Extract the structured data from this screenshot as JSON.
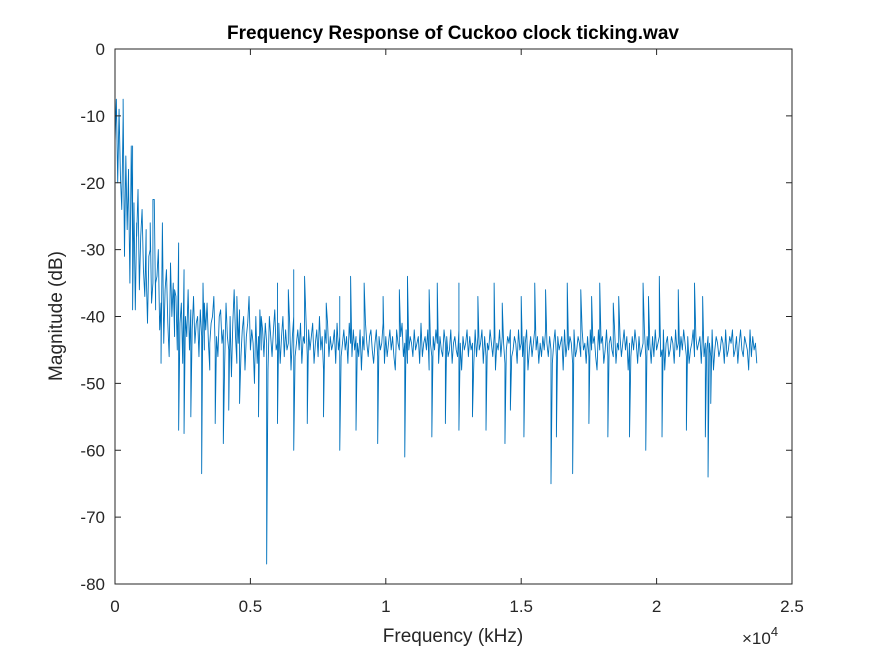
{
  "chart_data": {
    "type": "line",
    "title": "Frequency Response of Cuckoo clock ticking.wav",
    "xlabel": "Frequency (kHz)",
    "ylabel": "Magnitude (dB)",
    "x_exponent_label": "×10",
    "x_exponent_power": "4",
    "xlim": [
      0,
      25000
    ],
    "ylim": [
      -80,
      0
    ],
    "xticks": [
      0,
      5000,
      10000,
      15000,
      20000,
      25000
    ],
    "xtick_labels": [
      "0",
      "0.5",
      "1",
      "1.5",
      "2",
      "2.5"
    ],
    "yticks": [
      0,
      -10,
      -20,
      -30,
      -40,
      -50,
      -60,
      -70,
      -80
    ],
    "ytick_labels": [
      "0",
      "-10",
      "-20",
      "-30",
      "-40",
      "-50",
      "-60",
      "-70",
      "-80"
    ],
    "grid": false,
    "line_color": "#0072BD",
    "series": [
      {
        "x_start": 0,
        "x_end": 22050,
        "x_step": 50,
        "values": [
          -14,
          -7.5,
          -20,
          -9,
          -19,
          -24,
          -10,
          -31,
          -16,
          -27,
          -18,
          -35,
          -14.5,
          -29,
          -23,
          -39,
          -26,
          -21,
          -36,
          -28,
          -24,
          -33,
          -37,
          -27,
          -41,
          -31,
          -30,
          -38,
          -35,
          -22.5,
          -39,
          -34,
          -30,
          -42,
          -38,
          -26,
          -44,
          -36,
          -33,
          -41,
          -46,
          -32,
          -40,
          -35,
          -43,
          -37,
          -45,
          -29,
          -41,
          -38,
          -47,
          -33,
          -40,
          -43,
          -36,
          -45,
          -39,
          -42,
          -37,
          -44,
          -41,
          -40,
          -46,
          -39,
          -43,
          -35,
          -45,
          -42,
          -38,
          -44,
          -48,
          -41,
          -40,
          -37,
          -45,
          -43,
          -46,
          -40,
          -39,
          -44,
          -42,
          -47,
          -38,
          -43,
          -45,
          -40,
          -49,
          -41,
          -36,
          -43,
          -47,
          -44,
          -39,
          -46,
          -42,
          -40,
          -48,
          -43,
          -41,
          -37,
          -45,
          -42,
          -44,
          -50,
          -40,
          -47,
          -43,
          -39,
          -45,
          -42,
          -46,
          -41,
          -44,
          -48,
          -40,
          -43,
          -46,
          -42,
          -39,
          -45,
          -44,
          -41,
          -47,
          -43,
          -40,
          -46,
          -42,
          -45,
          -44,
          -41,
          -48,
          -43,
          -40,
          -46,
          -44,
          -42,
          -45,
          -41,
          -47,
          -43,
          -44,
          -40,
          -46,
          -42,
          -45,
          -43,
          -41,
          -47,
          -44,
          -42,
          -46,
          -40,
          -45,
          -43,
          -48,
          -42,
          -44,
          -41,
          -46,
          -43,
          -45,
          -44,
          -42,
          -47,
          -41,
          -45,
          -43,
          -46,
          -44,
          -42,
          -45,
          -43,
          -47,
          -41,
          -44,
          -46,
          -42,
          -45,
          -43,
          -44,
          -46,
          -42,
          -48,
          -43,
          -45,
          -41,
          -44,
          -46,
          -43,
          -42,
          -45,
          -47,
          -44,
          -42,
          -46,
          -43,
          -45,
          -44,
          -41,
          -47,
          -43,
          -46,
          -44,
          -42,
          -45,
          -43,
          -46,
          -48,
          -42,
          -44,
          -45,
          -43,
          -41,
          -46,
          -44,
          -42,
          -47,
          -45,
          -43,
          -44,
          -46,
          -42,
          -45,
          -44,
          -43,
          -47,
          -41,
          -46,
          -44,
          -43,
          -45,
          -42,
          -48,
          -44,
          -46,
          -43,
          -45,
          -42,
          -44,
          -47,
          -43,
          -45,
          -46,
          -42,
          -44,
          -43,
          -46,
          -45,
          -42,
          -47,
          -44,
          -43,
          -45,
          -46,
          -42,
          -44,
          -48,
          -43,
          -45,
          -44,
          -42,
          -46,
          -43,
          -45,
          -44,
          -47,
          -42,
          -46,
          -43,
          -45,
          -44,
          -42,
          -47,
          -43,
          -46,
          -44,
          -45,
          -42,
          -44,
          -46,
          -43,
          -48,
          -44,
          -45,
          -42,
          -46,
          -43,
          -44,
          -47,
          -45,
          -43,
          -44,
          -42,
          -46,
          -45,
          -43,
          -44,
          -47,
          -42,
          -45,
          -44,
          -46,
          -43,
          -44,
          -42,
          -48,
          -45,
          -43,
          -46,
          -44,
          -42,
          -45,
          -43,
          -47,
          -44,
          -46,
          -43,
          -45,
          -42,
          -44,
          -46,
          -43,
          -45,
          -47,
          -44,
          -42,
          -46,
          -43,
          -45,
          -44,
          -43,
          -48,
          -42,
          -46,
          -44,
          -45,
          -43,
          -44,
          -47,
          -42,
          -46,
          -45,
          -43,
          -44,
          -46,
          -42,
          -45,
          -44,
          -47,
          -43,
          -46,
          -42,
          -45,
          -44,
          -43,
          -46,
          -48,
          -42,
          -45,
          -44,
          -43,
          -47,
          -45,
          -42,
          -46,
          -44,
          -43,
          -45,
          -46,
          -42,
          -47,
          -44,
          -45,
          -43,
          -46,
          -44,
          -42,
          -45,
          -43,
          -48,
          -44,
          -46,
          -43,
          -45,
          -42,
          -44,
          -47,
          -43,
          -46,
          -45,
          -44,
          -42,
          -46,
          -43,
          -45,
          -44,
          -47,
          -43,
          -46,
          -42,
          -45,
          -44,
          -43,
          -46,
          -45,
          -42,
          -48,
          -44,
          -43,
          -46,
          -45,
          -43,
          -44,
          -47,
          -42,
          -45,
          -44,
          -46,
          -43,
          -45,
          -42,
          -44,
          -46,
          -43,
          -47,
          -45,
          -44,
          -42,
          -46,
          -43,
          -45,
          -44,
          -43,
          -47,
          -42,
          -46,
          -44,
          -45,
          -43,
          -44,
          -46,
          -42,
          -48,
          -45,
          -43,
          -44,
          -46,
          -45,
          -43,
          -44,
          -47,
          -42,
          -46,
          -45,
          -43,
          -44,
          -42,
          -46,
          -45,
          -43,
          -47,
          -44,
          -42,
          -45,
          -46,
          -43,
          -44,
          -45,
          -48,
          -42,
          -46,
          -43,
          -45,
          -44,
          -47
        ],
        "peaks": [
          [
            300,
            -7.5
          ],
          [
            500,
            -20
          ],
          [
            650,
            -14.5
          ],
          [
            800,
            -28
          ],
          [
            1000,
            -24
          ],
          [
            1150,
            -33
          ],
          [
            1300,
            -26
          ],
          [
            1400,
            -22.5
          ],
          [
            1500,
            -35
          ],
          [
            2200,
            -36
          ],
          [
            2800,
            -43
          ],
          [
            2900,
            -37
          ],
          [
            3300,
            -38
          ],
          [
            3500,
            -44
          ],
          [
            4500,
            -37
          ],
          [
            5400,
            -40
          ],
          [
            6000,
            -35
          ],
          [
            6400,
            -36
          ],
          [
            6600,
            -33
          ],
          [
            7000,
            -34
          ],
          [
            7800,
            -38
          ],
          [
            8300,
            -37
          ],
          [
            8700,
            -34
          ],
          [
            9200,
            -35
          ],
          [
            9900,
            -37
          ],
          [
            10500,
            -36
          ],
          [
            10800,
            -34
          ],
          [
            11600,
            -36
          ],
          [
            11900,
            -35
          ],
          [
            12700,
            -35
          ],
          [
            13400,
            -37
          ],
          [
            14000,
            -35
          ],
          [
            14300,
            -38
          ],
          [
            15000,
            -37
          ],
          [
            15500,
            -35
          ],
          [
            15900,
            -36
          ],
          [
            16700,
            -35
          ],
          [
            17200,
            -36
          ],
          [
            17600,
            -37
          ],
          [
            17900,
            -35
          ],
          [
            18400,
            -38
          ],
          [
            18600,
            -37
          ],
          [
            19500,
            -35
          ],
          [
            19700,
            -37
          ],
          [
            20100,
            -34
          ],
          [
            20800,
            -36
          ],
          [
            21400,
            -35
          ],
          [
            21700,
            -37
          ]
        ],
        "dips": [
          [
            650,
            -39
          ],
          [
            1700,
            -47
          ],
          [
            2350,
            -57
          ],
          [
            2550,
            -57.5
          ],
          [
            2800,
            -55
          ],
          [
            3200,
            -63.5
          ],
          [
            3700,
            -56
          ],
          [
            4000,
            -59
          ],
          [
            4200,
            -54
          ],
          [
            4600,
            -53
          ],
          [
            5300,
            -55
          ],
          [
            5600,
            -77
          ],
          [
            6000,
            -56
          ],
          [
            6600,
            -60
          ],
          [
            7100,
            -56
          ],
          [
            7700,
            -55
          ],
          [
            8300,
            -60
          ],
          [
            8900,
            -57
          ],
          [
            9700,
            -59
          ],
          [
            10700,
            -61
          ],
          [
            11700,
            -58
          ],
          [
            12200,
            -56
          ],
          [
            12700,
            -57
          ],
          [
            13200,
            -55
          ],
          [
            13700,
            -57
          ],
          [
            14400,
            -59
          ],
          [
            14600,
            -54
          ],
          [
            15100,
            -58
          ],
          [
            16100,
            -65
          ],
          [
            16300,
            -58
          ],
          [
            16900,
            -63.5
          ],
          [
            17500,
            -56
          ],
          [
            18200,
            -58
          ],
          [
            19000,
            -58
          ],
          [
            19600,
            -60
          ],
          [
            20200,
            -58
          ],
          [
            21100,
            -57
          ],
          [
            21800,
            -58
          ],
          [
            21900,
            -64
          ],
          [
            22000,
            -53
          ]
        ]
      }
    ]
  }
}
